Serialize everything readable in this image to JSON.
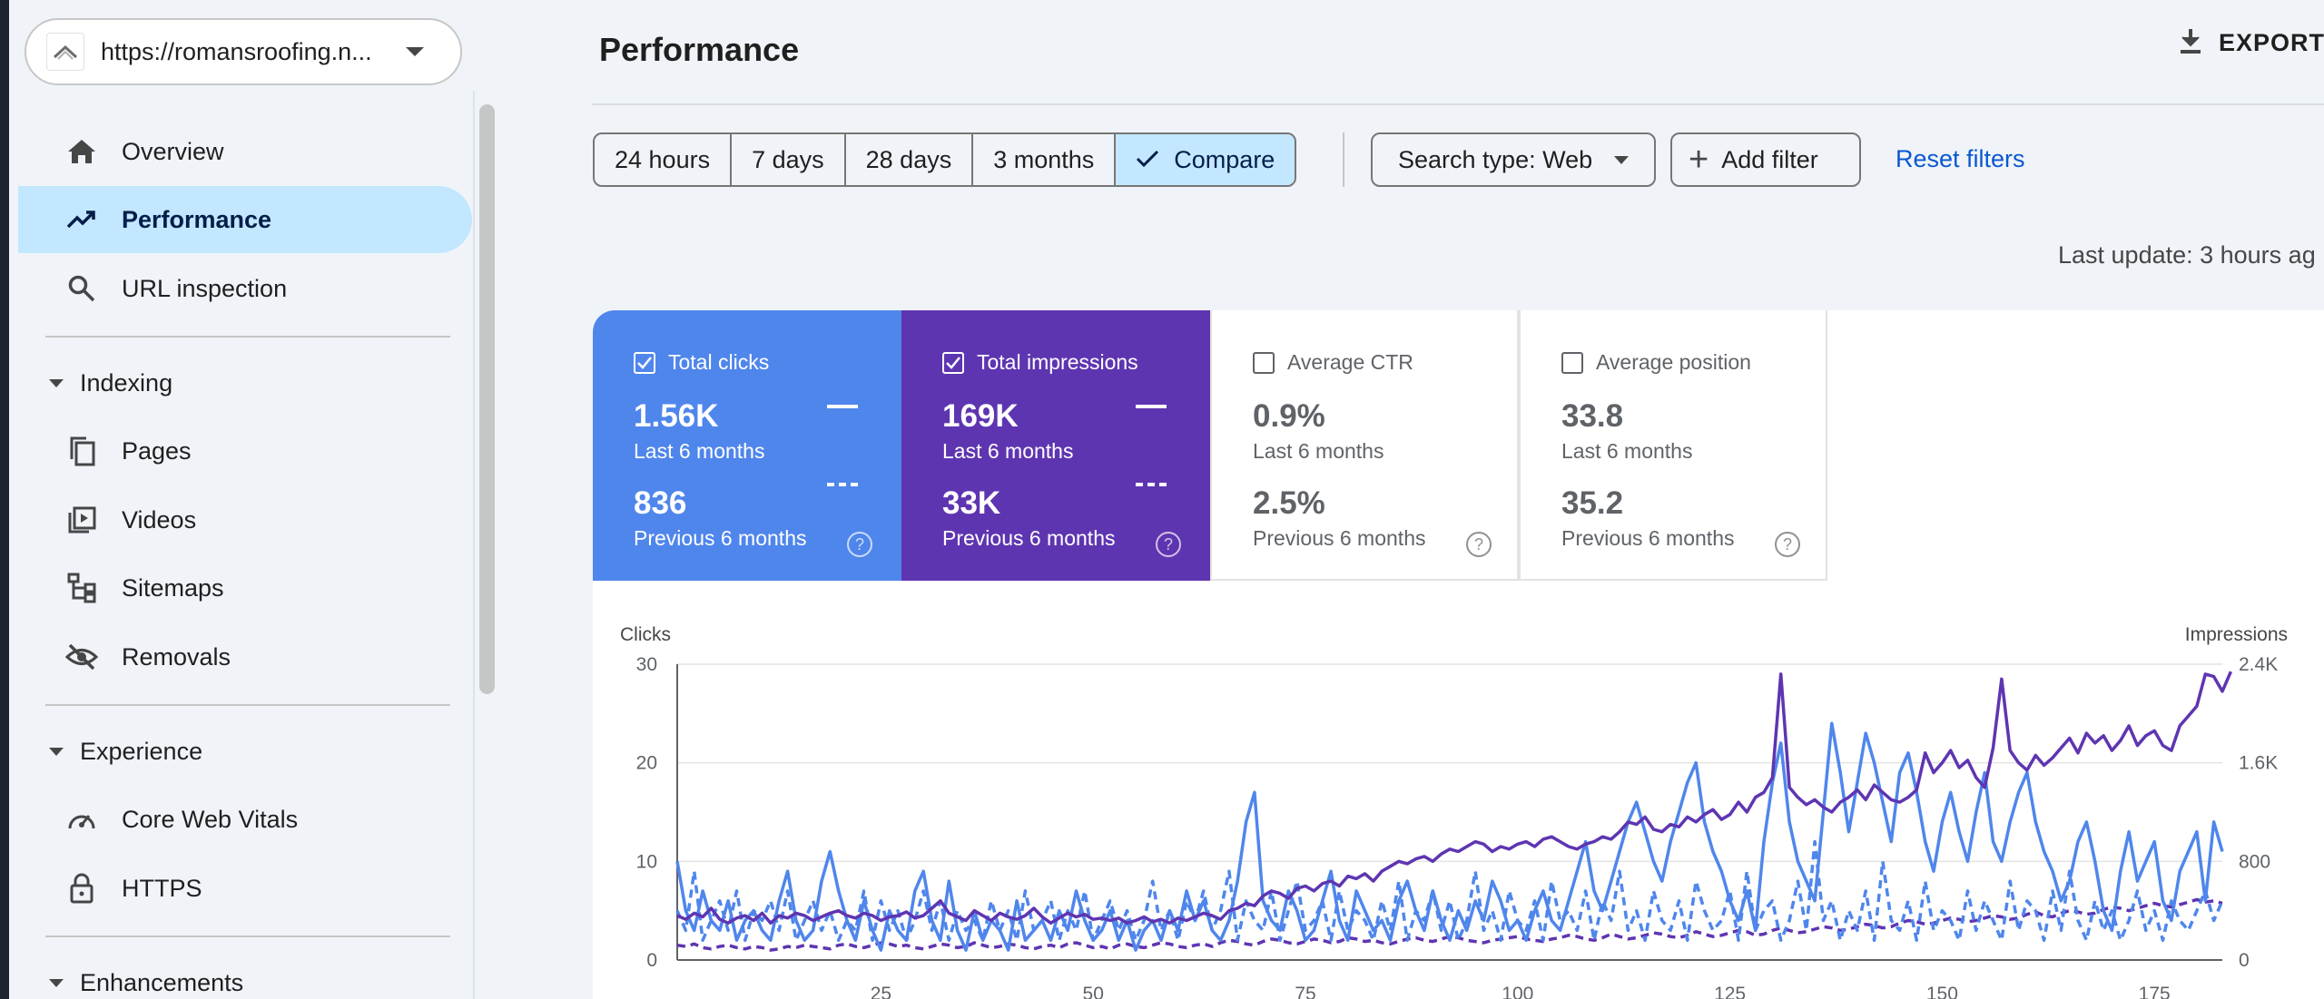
{
  "property": {
    "url": "https://romansroofing.n..."
  },
  "nav": {
    "overview": "Overview",
    "performance": "Performance",
    "url_inspection": "URL inspection",
    "indexing": "Indexing",
    "pages": "Pages",
    "videos": "Videos",
    "sitemaps": "Sitemaps",
    "removals": "Removals",
    "experience": "Experience",
    "core_web_vitals": "Core Web Vitals",
    "https": "HTTPS",
    "enhancements": "Enhancements"
  },
  "header": {
    "title": "Performance",
    "export": "EXPORT"
  },
  "date_filters": [
    "24 hours",
    "7 days",
    "28 days",
    "3 months",
    "Compare"
  ],
  "filters": {
    "search_type": "Search type: Web",
    "add_filter": "Add filter",
    "reset": "Reset filters"
  },
  "last_update": "Last update: 3 hours ag",
  "metrics": [
    {
      "label": "Total clicks",
      "current": "1.56K",
      "current_period": "Last 6 months",
      "previous": "836",
      "previous_period": "Previous 6 months",
      "checked": true,
      "color": "#4f86ec"
    },
    {
      "label": "Total impressions",
      "current": "169K",
      "current_period": "Last 6 months",
      "previous": "33K",
      "previous_period": "Previous 6 months",
      "checked": true,
      "color": "#5e35b1"
    },
    {
      "label": "Average CTR",
      "current": "0.9%",
      "current_period": "Last 6 months",
      "previous": "2.5%",
      "previous_period": "Previous 6 months",
      "checked": false
    },
    {
      "label": "Average position",
      "current": "33.8",
      "current_period": "Last 6 months",
      "previous": "35.2",
      "previous_period": "Previous 6 months",
      "checked": false
    }
  ],
  "help_glyph": "?",
  "chart_data": {
    "type": "line",
    "ylabel": "Clicks",
    "ylabel_right": "Impressions",
    "y_ticks": [
      "30",
      "20",
      "10",
      "0"
    ],
    "y_right_ticks": [
      "2.4K",
      "1.6K",
      "800",
      "0"
    ],
    "x_ticks": [
      "25",
      "50",
      "75",
      "100",
      "125",
      "150",
      "175"
    ],
    "ylim": [
      0,
      30
    ],
    "ylim_right": [
      0,
      2400
    ],
    "xlim": [
      1,
      183
    ],
    "colors": {
      "clicks": "#4f86ec",
      "impressions": "#5e35b1"
    },
    "series": [
      {
        "key": "clicks_current",
        "axis": "left",
        "dashed": false,
        "color": "#4f86ec",
        "values": [
          10,
          5,
          3,
          7,
          4,
          3,
          6,
          2,
          4,
          5,
          3,
          2,
          6,
          9,
          4,
          2,
          3,
          8,
          11,
          7,
          4,
          2,
          6,
          3,
          1,
          5,
          3,
          2,
          7,
          9,
          4,
          2,
          8,
          3,
          1,
          5,
          2,
          4,
          3,
          1,
          6,
          2,
          3,
          4,
          2,
          5,
          3,
          7,
          4,
          2,
          3,
          5,
          2,
          4,
          1,
          3,
          4,
          2,
          5,
          3,
          7,
          4,
          6,
          3,
          2,
          4,
          8,
          14,
          17,
          6,
          4,
          3,
          7,
          5,
          2,
          3,
          6,
          9,
          4,
          2,
          7,
          5,
          3,
          4,
          2,
          6,
          8,
          5,
          3,
          7,
          4,
          2,
          5,
          3,
          6,
          4,
          8,
          6,
          3,
          4,
          2,
          5,
          7,
          4,
          3,
          6,
          9,
          12,
          7,
          5,
          8,
          11,
          14,
          16,
          13,
          10,
          8,
          12,
          15,
          18,
          20,
          14,
          11,
          9,
          6,
          4,
          7,
          3,
          12,
          18,
          22,
          14,
          10,
          8,
          6,
          15,
          24,
          19,
          13,
          18,
          23,
          20,
          16,
          12,
          19,
          21,
          17,
          12,
          9,
          14,
          17,
          13,
          10,
          15,
          19,
          12,
          10,
          14,
          17,
          19,
          14,
          11,
          9,
          6,
          8,
          12,
          14,
          10,
          5,
          3,
          9,
          13,
          8,
          10,
          12,
          6,
          4,
          9,
          11,
          13,
          6,
          14,
          11
        ]
      },
      {
        "key": "clicks_previous",
        "axis": "left",
        "dashed": true,
        "color": "#4f86ec",
        "values": [
          5,
          3,
          9,
          2,
          4,
          6,
          3,
          7,
          2,
          5,
          4,
          6,
          3,
          7,
          2,
          4,
          6,
          3,
          5,
          2,
          4,
          3,
          7,
          2,
          6,
          3,
          5,
          2,
          4,
          7,
          3,
          6,
          2,
          5,
          3,
          4,
          2,
          6,
          3,
          5,
          2,
          7,
          3,
          4,
          6,
          2,
          5,
          3,
          7,
          2,
          4,
          6,
          3,
          5,
          2,
          4,
          8,
          3,
          5,
          2,
          6,
          4,
          7,
          3,
          5,
          9,
          2,
          6,
          4,
          3,
          7,
          2,
          5,
          8,
          3,
          4,
          6,
          2,
          7,
          3,
          5,
          4,
          2,
          6,
          3,
          8,
          2,
          5,
          4,
          7,
          3,
          6,
          2,
          4,
          9,
          3,
          5,
          2,
          7,
          4,
          3,
          6,
          2,
          8,
          4,
          5,
          3,
          7,
          2,
          6,
          4,
          9,
          3,
          5,
          2,
          7,
          4,
          3,
          6,
          2,
          8,
          5,
          3,
          4,
          7,
          2,
          9,
          3,
          5,
          6,
          2,
          4,
          8,
          3,
          12,
          4,
          6,
          2,
          5,
          3,
          7,
          2,
          10,
          4,
          3,
          6,
          2,
          8,
          3,
          5,
          4,
          2,
          7,
          3,
          6,
          4,
          2,
          8,
          3,
          6,
          5,
          2,
          7,
          3,
          9,
          4,
          2,
          6,
          3,
          5,
          2,
          4,
          7,
          3,
          5,
          2,
          6,
          4,
          3,
          5,
          7,
          4,
          6
        ]
      },
      {
        "key": "impressions_current",
        "axis": "right",
        "dashed": false,
        "color": "#5e35b1",
        "values": [
          360,
          330,
          380,
          350,
          420,
          330,
          300,
          340,
          360,
          320,
          380,
          300,
          360,
          340,
          380,
          360,
          320,
          350,
          380,
          400,
          360,
          340,
          380,
          360,
          320,
          350,
          360,
          390,
          340,
          360,
          420,
          480,
          380,
          350,
          320,
          400,
          360,
          320,
          380,
          350,
          330,
          360,
          420,
          350,
          300,
          340,
          380,
          350,
          370,
          330,
          340,
          320,
          340,
          300,
          320,
          350,
          310,
          330,
          300,
          340,
          320,
          350,
          380,
          360,
          330,
          400,
          420,
          460,
          440,
          520,
          560,
          540,
          500,
          580,
          600,
          560,
          620,
          640,
          600,
          680,
          660,
          700,
          640,
          720,
          760,
          800,
          780,
          820,
          840,
          800,
          860,
          900,
          880,
          920,
          960,
          940,
          880,
          920,
          900,
          940,
          960,
          920,
          980,
          1000,
          960,
          920,
          900,
          940,
          960,
          1000,
          980,
          1040,
          1120,
          1100,
          1160,
          1060,
          1040,
          1100,
          1080,
          1160,
          1120,
          1180,
          1220,
          1140,
          1180,
          1280,
          1200,
          1320,
          1360,
          1480,
          2320,
          1400,
          1320,
          1260,
          1300,
          1240,
          1200,
          1280,
          1320,
          1380,
          1300,
          1420,
          1360,
          1300,
          1280,
          1320,
          1380,
          1680,
          1520,
          1600,
          1700,
          1560,
          1620,
          1480,
          1400,
          1720,
          2280,
          1700,
          1600,
          1540,
          1660,
          1580,
          1640,
          1720,
          1800,
          1680,
          1840,
          1760,
          1820,
          1700,
          1780,
          1900,
          1740,
          1820,
          1860,
          1740,
          1700,
          1900,
          1980,
          2060,
          2320,
          2300,
          2180,
          2340
        ]
      },
      {
        "key": "impressions_previous",
        "axis": "right",
        "dashed": true,
        "color": "#5e35b1",
        "values": [
          120,
          110,
          130,
          100,
          90,
          110,
          120,
          100,
          90,
          110,
          100,
          80,
          90,
          110,
          100,
          120,
          110,
          100,
          90,
          120,
          130,
          110,
          100,
          120,
          140,
          130,
          110,
          120,
          100,
          90,
          110,
          130,
          120,
          100,
          110,
          140,
          120,
          100,
          110,
          130,
          120,
          100,
          90,
          110,
          120,
          100,
          130,
          140,
          120,
          100,
          110,
          90,
          120,
          130,
          110,
          100,
          120,
          140,
          130,
          110,
          100,
          120,
          130,
          110,
          140,
          160,
          150,
          130,
          120,
          150,
          170,
          160,
          140,
          130,
          150,
          170,
          160,
          140,
          150,
          180,
          170,
          150,
          160,
          140,
          130,
          150,
          170,
          180,
          160,
          150,
          170,
          190,
          180,
          160,
          150,
          140,
          160,
          170,
          180,
          190,
          170,
          160,
          150,
          170,
          180,
          200,
          190,
          170,
          160,
          180,
          210,
          190,
          170,
          180,
          200,
          220,
          210,
          190,
          180,
          200,
          230,
          210,
          190,
          200,
          220,
          240,
          230,
          200,
          210,
          240,
          260,
          240,
          220,
          230,
          250,
          270,
          260,
          240,
          250,
          270,
          290,
          280,
          260,
          270,
          300,
          320,
          310,
          290,
          300,
          320,
          340,
          330,
          310,
          320,
          340,
          360,
          350,
          330,
          340,
          370,
          390,
          360,
          350,
          380,
          400,
          390,
          370,
          380,
          410,
          430,
          420,
          400,
          420,
          440,
          460,
          440,
          430,
          450,
          470,
          490,
          470,
          480,
          460
        ]
      }
    ]
  }
}
